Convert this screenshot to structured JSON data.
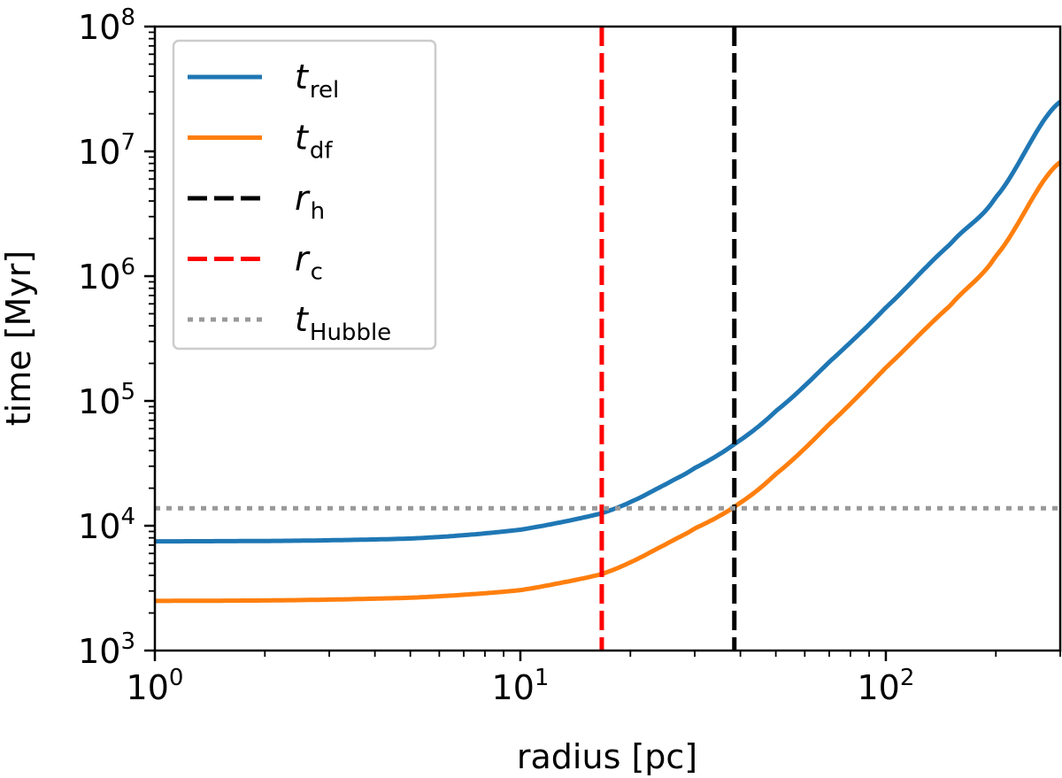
{
  "chart_data": {
    "type": "line",
    "xlabel": "radius [pc]",
    "ylabel": "time [Myr]",
    "xscale": "log",
    "yscale": "log",
    "xlim": [
      1,
      300
    ],
    "ylim": [
      1000,
      100000000
    ],
    "x_ticks": [
      {
        "value": 1,
        "base": "10",
        "exp": "0"
      },
      {
        "value": 10,
        "base": "10",
        "exp": "1"
      },
      {
        "value": 100,
        "base": "10",
        "exp": "2"
      }
    ],
    "y_ticks": [
      {
        "value": 1000,
        "base": "10",
        "exp": "3"
      },
      {
        "value": 10000,
        "base": "10",
        "exp": "4"
      },
      {
        "value": 100000,
        "base": "10",
        "exp": "5"
      },
      {
        "value": 1000000,
        "base": "10",
        "exp": "6"
      },
      {
        "value": 10000000,
        "base": "10",
        "exp": "7"
      },
      {
        "value": 100000000,
        "base": "10",
        "exp": "8"
      }
    ],
    "grid": false,
    "legend_position": "top-left",
    "series": [
      {
        "name": "t_rel",
        "label_main": "t",
        "label_sub": "rel",
        "color": "#1f77b4",
        "style": "solid",
        "x": [
          1,
          2,
          3,
          5,
          7,
          10,
          13,
          16.7,
          20,
          25,
          30,
          38.5,
          50,
          70,
          100,
          150,
          200,
          300
        ],
        "y": [
          7500,
          7550,
          7650,
          7900,
          8400,
          9300,
          10700,
          12600,
          15500,
          21500,
          29000,
          45000,
          83000,
          205000,
          560000,
          1800000,
          4300000,
          25000000
        ]
      },
      {
        "name": "t_df",
        "label_main": "t",
        "label_sub": "df",
        "color": "#ff7f0e",
        "style": "solid",
        "x": [
          1,
          2,
          3,
          5,
          7,
          10,
          13,
          16.7,
          20,
          25,
          30,
          38.5,
          50,
          70,
          100,
          150,
          200,
          300
        ],
        "y": [
          2500,
          2520,
          2560,
          2650,
          2800,
          3050,
          3500,
          4100,
          5100,
          7100,
          9500,
          14200,
          26000,
          65000,
          185000,
          580000,
          1450000,
          8200000
        ]
      },
      {
        "name": "r_h",
        "label_main": "r",
        "label_sub": "h",
        "color": "#000000",
        "style": "dashed",
        "orientation": "vertical",
        "value": 38.5
      },
      {
        "name": "r_c",
        "label_main": "r",
        "label_sub": "c",
        "color": "#ff0000",
        "style": "dashed",
        "orientation": "vertical",
        "value": 16.7
      },
      {
        "name": "t_Hubble",
        "label_main": "t",
        "label_sub": "Hubble",
        "color": "#999999",
        "style": "dotted",
        "orientation": "horizontal",
        "value": 13800
      }
    ]
  }
}
